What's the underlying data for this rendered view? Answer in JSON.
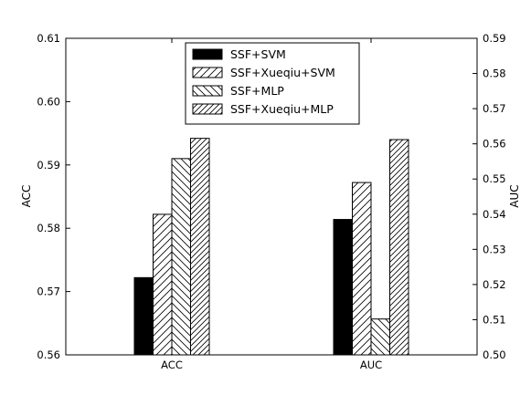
{
  "chart_data": {
    "type": "bar",
    "categories": [
      "ACC",
      "AUC"
    ],
    "series": [
      {
        "name": "SSF+SVM",
        "pattern": "solid",
        "axes": [
          "left",
          "right"
        ],
        "values": [
          0.5722,
          0.5385
        ]
      },
      {
        "name": "SSF+Xueqiu+SVM",
        "pattern": "hatch-forward",
        "axes": [
          "left",
          "right"
        ],
        "values": [
          0.5822,
          0.549
        ]
      },
      {
        "name": "SSF+MLP",
        "pattern": "hatch-back",
        "axes": [
          "left",
          "right"
        ],
        "values": [
          0.591,
          0.5102
        ]
      },
      {
        "name": "SSF+Xueqiu+MLP",
        "pattern": "hatch-forward-dense",
        "axes": [
          "left",
          "right"
        ],
        "values": [
          0.5942,
          0.5612
        ]
      }
    ],
    "y_left": {
      "label": "ACC",
      "ylim": [
        0.56,
        0.61
      ],
      "ticks": [
        "0.56",
        "0.57",
        "0.58",
        "0.59",
        "0.60",
        "0.61"
      ]
    },
    "y_right": {
      "label": "AUC",
      "ylim": [
        0.5,
        0.59
      ],
      "ticks": [
        "0.50",
        "0.51",
        "0.52",
        "0.53",
        "0.54",
        "0.55",
        "0.56",
        "0.57",
        "0.58",
        "0.59"
      ]
    },
    "legend_position": "top-center",
    "grid": false,
    "colors": {
      "bar_fill": "#000000",
      "hatch": "#000000",
      "background": "#ffffff"
    }
  }
}
